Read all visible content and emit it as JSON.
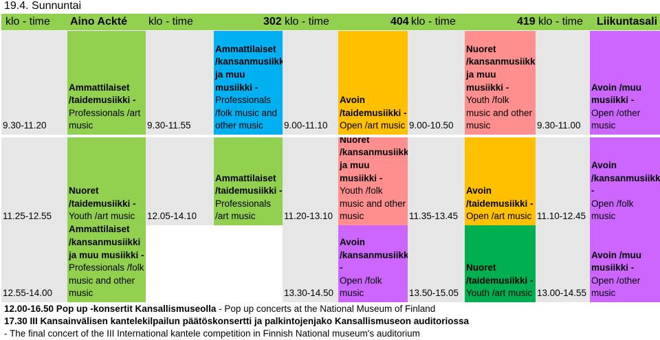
{
  "title": "19.4. Sunnuntai",
  "header": {
    "col1": "klo - time",
    "col2": "Aino Ackté",
    "col3": "klo - time",
    "col4": "302",
    "col5": "klo - time",
    "col6": "404",
    "col7": "klo - time",
    "col8": "419",
    "col9": "klo - time",
    "col10": "Liikuntasali"
  },
  "rows": [
    {
      "cells": [
        {
          "time": "9.30-11.20",
          "h": "Ammattilaiset /taidemusiikki -",
          "t": "Professionals /art music"
        },
        {
          "time": "9.30-11.55",
          "h": "Ammattilaiset /kansanmusiikki ja muu musiikki -",
          "t": "Professionals /folk music and other music"
        },
        {
          "time": "9.00-11.10",
          "h": "Avoin /taidemusiikki -",
          "t": "Open /art music"
        },
        {
          "time": "9.00-10.50",
          "h": "Nuoret /kansanmusiikki ja muu musiikki -",
          "t": "Youth /folk music and other music"
        },
        {
          "time": "9.30-11.00",
          "h": "Avoin /muu musiikki -",
          "t": "Open /other music"
        }
      ]
    },
    {
      "cells": [
        {
          "time": "11.25-12.55",
          "h": "Nuoret /taidemusiikki -",
          "t": "Youth /art music"
        },
        {
          "time": "12.05-14.10",
          "h": "Ammattilaiset /taidemusiikki -",
          "t": "Professionals /art music"
        },
        {
          "time": "11.20-13.10",
          "h": "Nuoret /kansanmusiikki ja muu musiikki -",
          "t": "Youth /folk music and other music"
        },
        {
          "time": "11.35-13.45",
          "h": "Avoin /taidemusiikki -",
          "t": "Open /art music"
        },
        {
          "time": "11.10-12.45",
          "h": "Avoin /kansanmusiikki -",
          "t": "Open /folk music"
        }
      ]
    },
    {
      "cells": [
        {
          "time": "12.55-14.00",
          "h": "Ammattilaiset /kansanmusiikki ja muu musiikki -",
          "t": "Professionals /folk music and other music"
        },
        {
          "time": "13.30-14.50",
          "h": "Avoin /kansanmusiikki -",
          "t": "Open /folk music"
        },
        {
          "time": "13.50-15.05",
          "h": "Nuoret /taidemusiikki -",
          "t": "Youth /art music"
        },
        {
          "time": "13.00-14.55",
          "h": "Avoin /muu musiikki -",
          "t": "Open /other music"
        }
      ]
    }
  ],
  "footer": {
    "line1_bold": "12.00-16.50 Pop up -konsertit Kansallismuseolla",
    "line1_rest": " - Pop up concerts at the National Museum of Finland",
    "line2": "17.30 III Kansainvälisen kantelekilpailun päätöskonsertti ja palkintojenjako Kansallismuseon auditoriossa",
    "line3": "- The final concert of the III International kantele competition in Finnish National museum's auditorium"
  },
  "colors": {
    "header": "#92d050",
    "gray": "#e6e6e6",
    "green": "#92d050",
    "blue": "#00b0f0",
    "orange": "#ffc000",
    "pink": "#ff8f8f",
    "purple": "#cc66ff",
    "dark_green": "#00b050"
  }
}
